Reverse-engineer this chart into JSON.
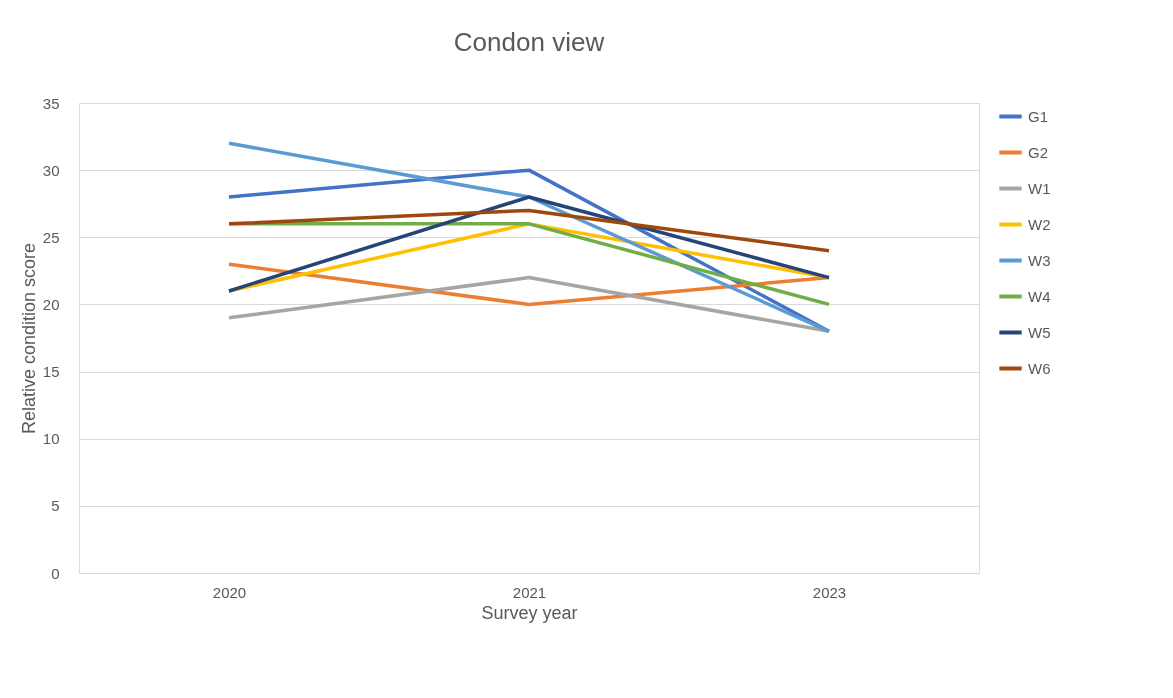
{
  "chart_data": {
    "type": "line",
    "title": "Condon view",
    "xlabel": "Survey year",
    "ylabel": "Relative condition score",
    "categories": [
      "2020",
      "2021",
      "2023"
    ],
    "series": [
      {
        "name": "G1",
        "color": "#4472c4",
        "values": [
          28,
          30,
          18
        ]
      },
      {
        "name": "G2",
        "color": "#ed7d31",
        "values": [
          23,
          20,
          22
        ]
      },
      {
        "name": "W1",
        "color": "#a5a5a5",
        "values": [
          19,
          22,
          18
        ]
      },
      {
        "name": "W2",
        "color": "#ffc000",
        "values": [
          21,
          26,
          22
        ]
      },
      {
        "name": "W3",
        "color": "#5b9bd5",
        "values": [
          32,
          28,
          18
        ]
      },
      {
        "name": "W4",
        "color": "#70ad47",
        "values": [
          26,
          26,
          20
        ]
      },
      {
        "name": "W5",
        "color": "#264478",
        "values": [
          21,
          28,
          22
        ]
      },
      {
        "name": "W6",
        "color": "#9e480e",
        "values": [
          26,
          27,
          24
        ]
      }
    ],
    "ylim": [
      0,
      35
    ],
    "yticks": [
      0,
      5,
      10,
      15,
      20,
      25,
      30,
      35
    ],
    "grid": "y",
    "legend": "right",
    "marker": "none",
    "line_style": "solid"
  }
}
